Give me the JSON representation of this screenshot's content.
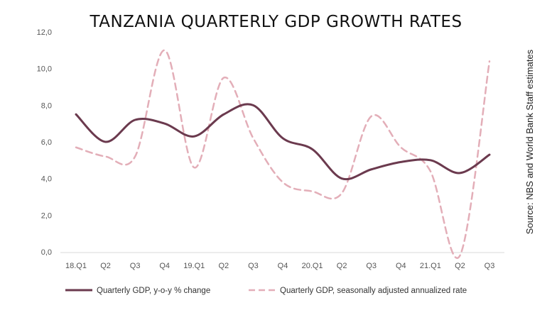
{
  "chart_data": {
    "type": "line",
    "title": "TANZANIA QUARTERLY GDP GROWTH RATES",
    "categories": [
      "18.Q1",
      "Q2",
      "Q3",
      "Q4",
      "19.Q1",
      "Q2",
      "Q3",
      "Q4",
      "20.Q1",
      "Q2",
      "Q3",
      "Q4",
      "21.Q1",
      "Q2",
      "Q3"
    ],
    "ylim": [
      0,
      12
    ],
    "yticks": [
      0,
      2,
      4,
      6,
      8,
      10,
      12
    ],
    "ytick_labels": [
      "0,0",
      "2,0",
      "4,0",
      "6,0",
      "8,0",
      "10,0",
      "12,0"
    ],
    "grid": false,
    "legend_position": "bottom",
    "series": [
      {
        "name": "Quarterly GDP, y-o-y % change",
        "color": "#6b3a4e",
        "style": "solid",
        "values": [
          7.5,
          6.0,
          7.2,
          7.0,
          6.3,
          7.5,
          8.0,
          6.2,
          5.6,
          4.0,
          4.5,
          4.9,
          5.0,
          4.3,
          5.3
        ]
      },
      {
        "name": "Quarterly GDP, seasonally adjusted annualized rate",
        "color": "#e3aeb8",
        "style": "dashed",
        "values": [
          5.7,
          5.2,
          5.2,
          11.0,
          4.6,
          9.5,
          6.2,
          3.8,
          3.3,
          3.2,
          7.4,
          5.7,
          4.4,
          -0.2,
          10.4
        ]
      }
    ],
    "source": "Source: NBS and World Bank Staff estimates"
  }
}
